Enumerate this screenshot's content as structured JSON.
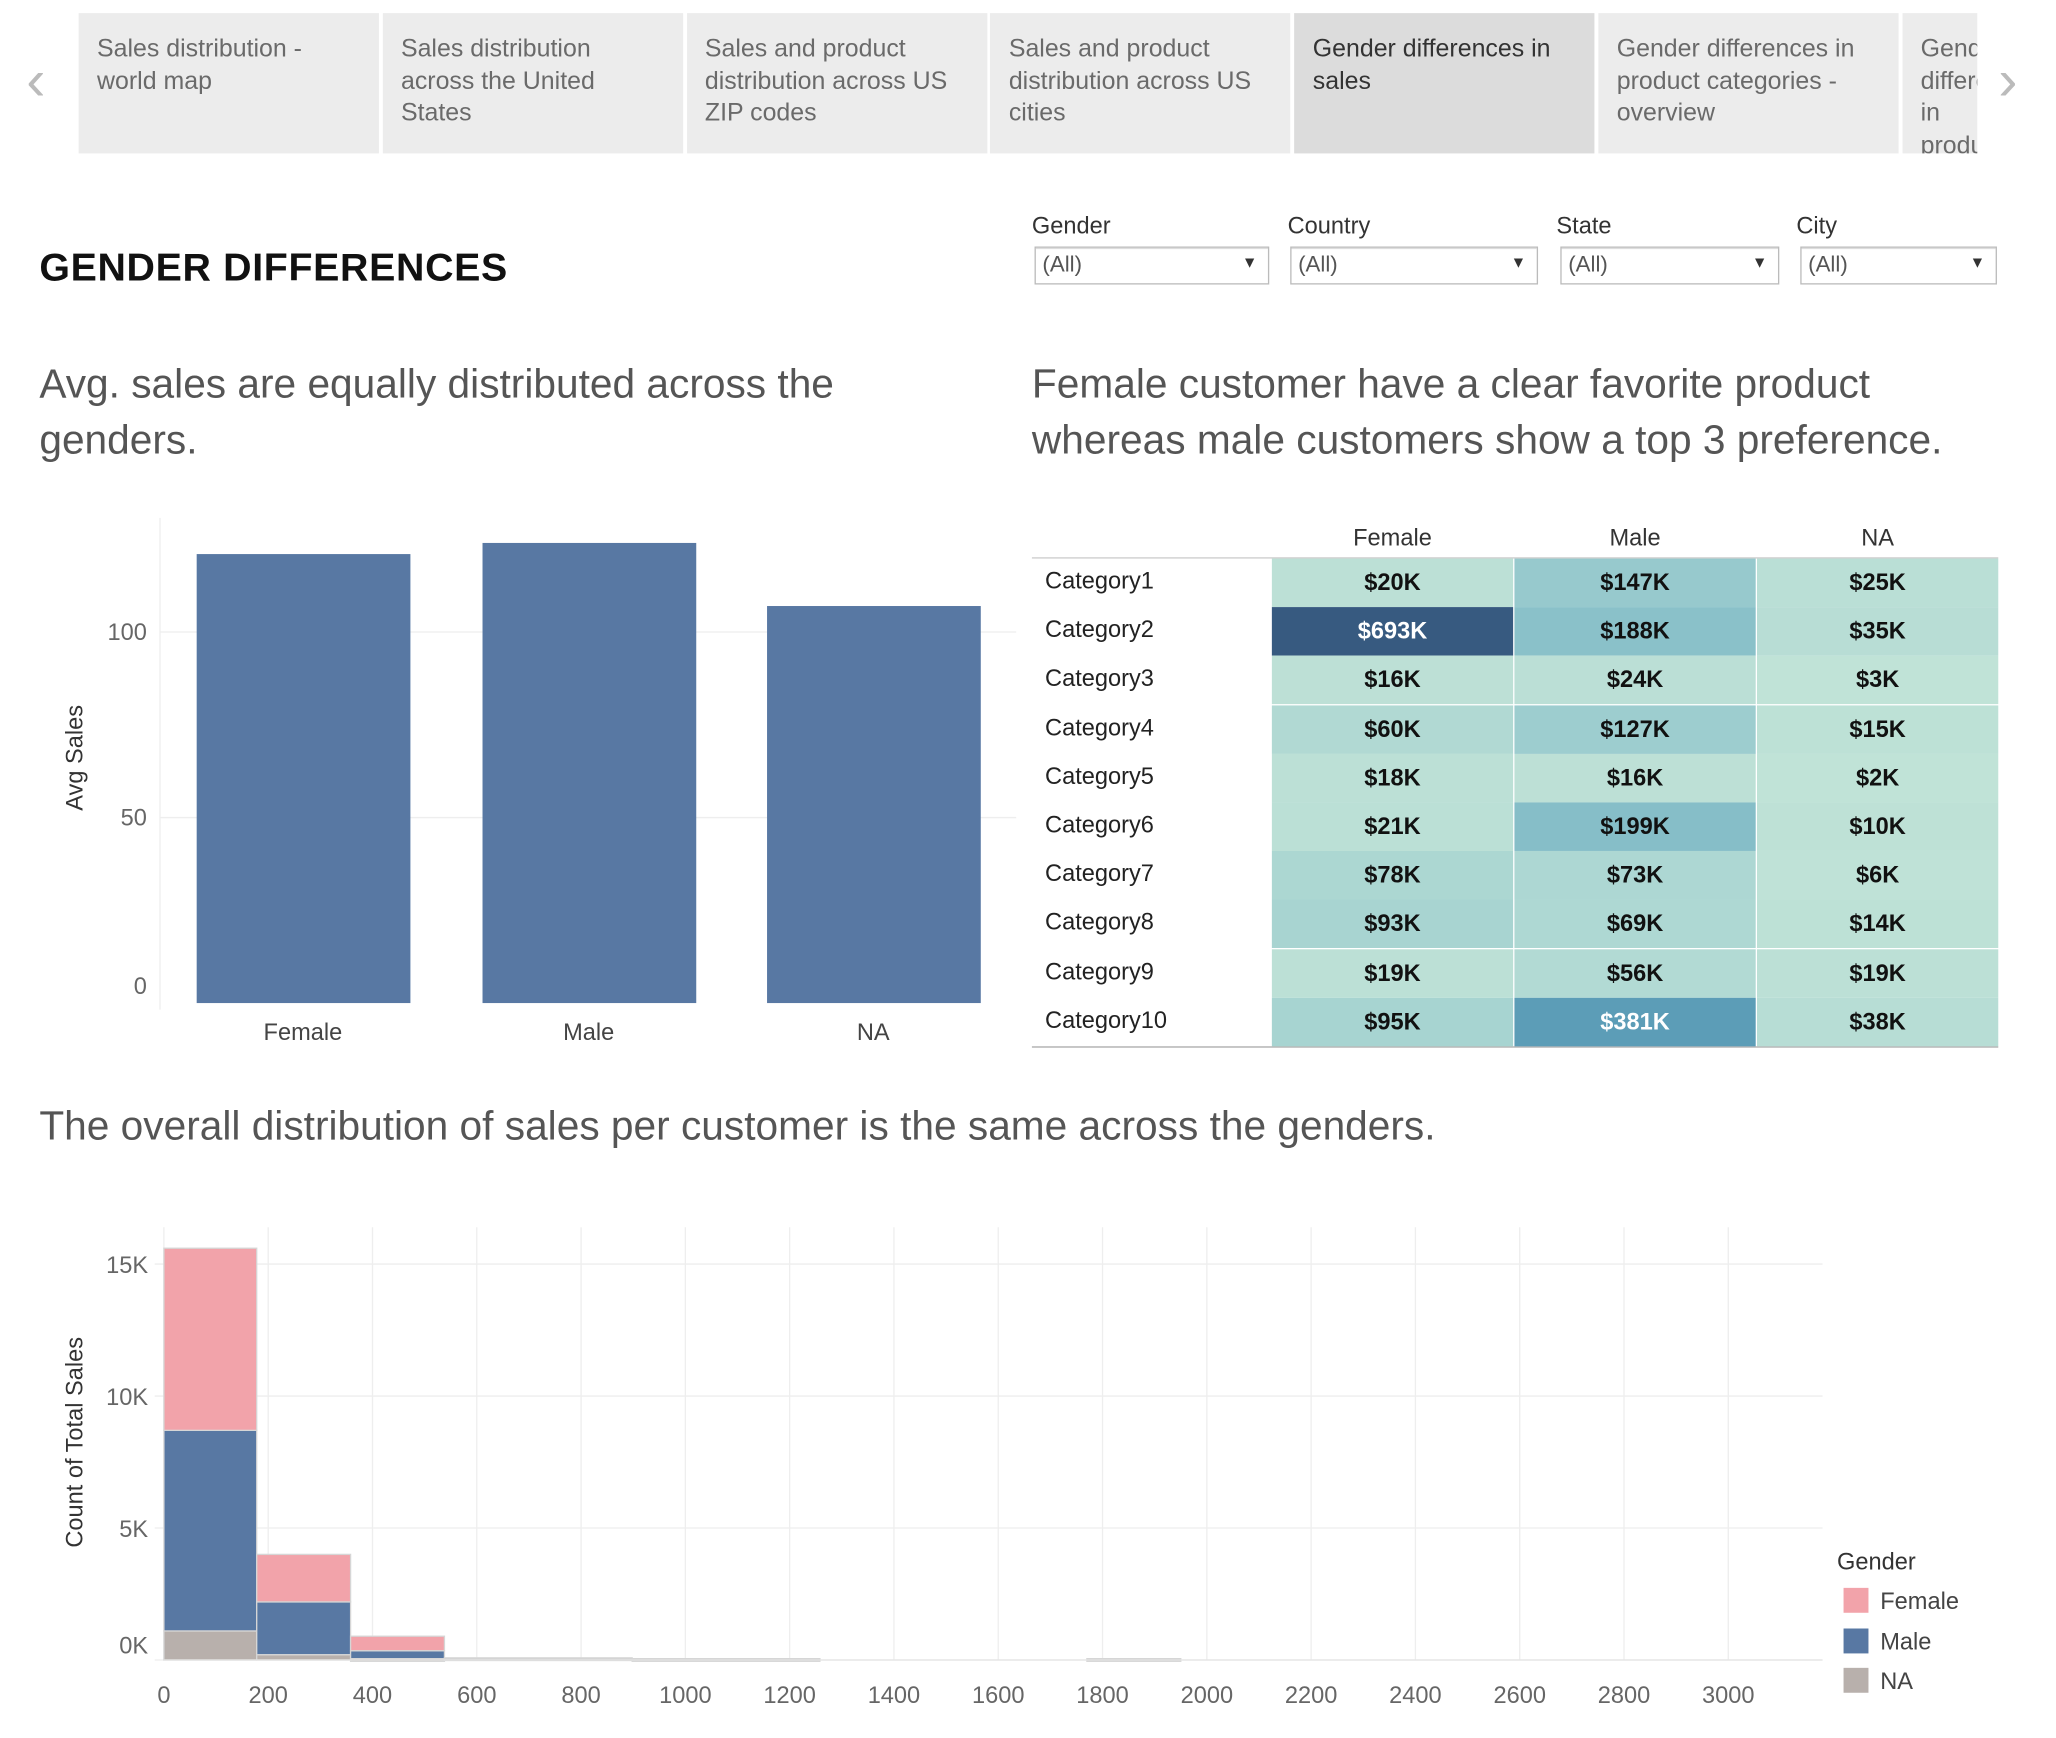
{
  "tabs": [
    {
      "label": "Sales distribution - world map",
      "active": false
    },
    {
      "label": "Sales distribution across the United States",
      "active": false
    },
    {
      "label": "Sales and product distribution across US ZIP codes",
      "active": false
    },
    {
      "label": "Sales and product distribution across US cities",
      "active": false
    },
    {
      "label": "Gender differences in sales",
      "active": true
    },
    {
      "label": "Gender differences in product categories - overview",
      "active": false
    },
    {
      "label": "Gender differences in product distr",
      "active": false
    }
  ],
  "nav": {
    "prev_icon": "chevron-left-icon",
    "next_icon": "chevron-right-icon"
  },
  "page_title": "GENDER DIFFERENCES",
  "filters": [
    {
      "label": "Gender",
      "value": "(All)"
    },
    {
      "label": "Country",
      "value": "(All)"
    },
    {
      "label": "State",
      "value": "(All)"
    },
    {
      "label": "City",
      "value": "(All)"
    }
  ],
  "headings": {
    "avg": "Avg. sales are equally distributed across the genders.",
    "category": "Female customer have a clear favorite product whereas male customers show a top 3 preference.",
    "distribution": "The overall distribution of sales per customer is the same across the genders."
  },
  "colors": {
    "female": "#f2a3aa",
    "male": "#5878a3",
    "na": "#b8b0ac",
    "heat_low": "#c1e3d7",
    "heat_high": "#36587f"
  },
  "chart_data": [
    {
      "type": "bar",
      "categories": [
        "Female",
        "Male",
        "NA"
      ],
      "values": [
        121,
        124,
        107
      ],
      "ylabel": "Avg Sales",
      "yticks": [
        "0",
        "50",
        "100"
      ],
      "ylim": [
        0,
        130
      ],
      "grid": true
    },
    {
      "type": "heatmap",
      "columns": [
        "Female",
        "Male",
        "NA"
      ],
      "rows": [
        {
          "label": "Category1",
          "values": [
            "$20K",
            "$147K",
            "$25K"
          ],
          "raw": [
            20,
            147,
            25
          ]
        },
        {
          "label": "Category2",
          "values": [
            "$693K",
            "$188K",
            "$35K"
          ],
          "raw": [
            693,
            188,
            35
          ]
        },
        {
          "label": "Category3",
          "values": [
            "$16K",
            "$24K",
            "$3K"
          ],
          "raw": [
            16,
            24,
            3
          ]
        },
        {
          "label": "Category4",
          "values": [
            "$60K",
            "$127K",
            "$15K"
          ],
          "raw": [
            60,
            127,
            15
          ]
        },
        {
          "label": "Category5",
          "values": [
            "$18K",
            "$16K",
            "$2K"
          ],
          "raw": [
            18,
            16,
            2
          ]
        },
        {
          "label": "Category6",
          "values": [
            "$21K",
            "$199K",
            "$10K"
          ],
          "raw": [
            21,
            199,
            10
          ]
        },
        {
          "label": "Category7",
          "values": [
            "$78K",
            "$73K",
            "$6K"
          ],
          "raw": [
            78,
            73,
            6
          ]
        },
        {
          "label": "Category8",
          "values": [
            "$93K",
            "$69K",
            "$14K"
          ],
          "raw": [
            93,
            69,
            14
          ]
        },
        {
          "label": "Category9",
          "values": [
            "$19K",
            "$56K",
            "$19K"
          ],
          "raw": [
            19,
            56,
            19
          ]
        },
        {
          "label": "Category10",
          "values": [
            "$95K",
            "$381K",
            "$38K"
          ],
          "raw": [
            95,
            381,
            38
          ]
        }
      ]
    },
    {
      "type": "bar",
      "stacked": true,
      "ylabel": "Count of Total Sales",
      "yticks": [
        "0K",
        "5K",
        "10K",
        "15K"
      ],
      "xticks": [
        "0",
        "200",
        "400",
        "600",
        "800",
        "1000",
        "1200",
        "1400",
        "1600",
        "1800",
        "2000",
        "2200",
        "2400",
        "2600",
        "2800",
        "3000"
      ],
      "xlim": [
        0,
        3180
      ],
      "ylim": [
        0,
        16500
      ],
      "bins": [
        [
          0,
          178
        ],
        [
          178,
          358
        ],
        [
          358,
          538
        ],
        [
          538,
          898
        ],
        [
          898,
          1258
        ],
        [
          1770,
          1950
        ]
      ],
      "series": [
        {
          "name": "NA",
          "values": [
            1100,
            200,
            50,
            80,
            50,
            50
          ]
        },
        {
          "name": "Male",
          "values": [
            7600,
            2000,
            300,
            0,
            0,
            0
          ]
        },
        {
          "name": "Female",
          "values": [
            6900,
            1800,
            550,
            0,
            0,
            0
          ]
        }
      ],
      "legend": {
        "title": "Gender",
        "items": [
          "Female",
          "Male",
          "NA"
        ],
        "position": "bottom-right"
      },
      "grid": true
    }
  ]
}
